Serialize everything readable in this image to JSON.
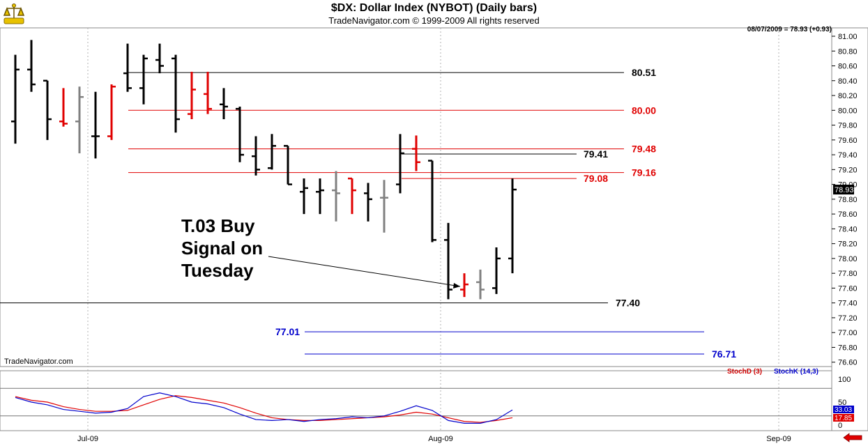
{
  "header": {
    "title": "$DX:  Dollar Index (NYBOT)  (Daily bars)",
    "subtitle": "TradeNavigator.com © 1999-2009 All rights reserved",
    "last_price": "08/07/2009 = 78.93 (+0.93)"
  },
  "watermark": "TradeNavigator.com",
  "annotation": {
    "lines": [
      "T.03 Buy",
      "Signal on",
      "Tuesday"
    ]
  },
  "colors": {
    "up_bar": "#000000",
    "down_bar": "#e00000",
    "inside_bar": "#808080",
    "red_level": "#e00000",
    "blue_level": "#0000cc",
    "stoch_d": "#e00000",
    "stoch_k": "#0000cc"
  },
  "chart_data": {
    "type": "ohlc",
    "ylim": [
      76.5,
      81.1
    ],
    "y_ticks": [
      "81.00",
      "80.80",
      "80.60",
      "80.40",
      "80.20",
      "80.00",
      "79.80",
      "79.60",
      "79.40",
      "79.20",
      "79.00",
      "78.80",
      "78.60",
      "78.40",
      "78.20",
      "78.00",
      "77.80",
      "77.60",
      "77.40",
      "77.20",
      "77.00",
      "76.80",
      "76.60"
    ],
    "x_labels": [
      "Jul-09",
      "Aug-09",
      "Sep-09"
    ],
    "bars": [
      {
        "o": 79.85,
        "h": 80.75,
        "l": 79.55,
        "c": 80.55,
        "color": "black"
      },
      {
        "o": 80.55,
        "h": 80.95,
        "l": 80.25,
        "c": 80.35,
        "color": "black"
      },
      {
        "o": 80.4,
        "h": 80.4,
        "l": 79.6,
        "c": 79.88,
        "color": "black"
      },
      {
        "o": 79.85,
        "h": 80.3,
        "l": 79.78,
        "c": 79.82,
        "color": "red"
      },
      {
        "o": 79.85,
        "h": 80.32,
        "l": 79.42,
        "c": 80.18,
        "color": "gray"
      },
      {
        "o": 79.65,
        "h": 80.25,
        "l": 79.35,
        "c": 79.65,
        "color": "black"
      },
      {
        "o": 79.65,
        "h": 80.35,
        "l": 79.6,
        "c": 80.32,
        "color": "red"
      },
      {
        "o": 80.5,
        "h": 80.9,
        "l": 80.25,
        "c": 80.3,
        "color": "black"
      },
      {
        "o": 80.3,
        "h": 80.75,
        "l": 80.08,
        "c": 80.7,
        "color": "black"
      },
      {
        "o": 80.68,
        "h": 80.9,
        "l": 80.5,
        "c": 80.6,
        "color": "black"
      },
      {
        "o": 80.7,
        "h": 80.75,
        "l": 79.7,
        "c": 79.88,
        "color": "black"
      },
      {
        "o": 79.95,
        "h": 80.52,
        "l": 79.88,
        "c": 80.28,
        "color": "red"
      },
      {
        "o": 80.22,
        "h": 80.52,
        "l": 79.95,
        "c": 80.02,
        "color": "red"
      },
      {
        "o": 80.08,
        "h": 80.3,
        "l": 79.88,
        "c": 80.05,
        "color": "black"
      },
      {
        "o": 80.02,
        "h": 80.05,
        "l": 79.3,
        "c": 79.4,
        "color": "black"
      },
      {
        "o": 79.38,
        "h": 79.65,
        "l": 79.12,
        "c": 79.2,
        "color": "black"
      },
      {
        "o": 79.22,
        "h": 79.68,
        "l": 79.2,
        "c": 79.52,
        "color": "black"
      },
      {
        "o": 79.52,
        "h": 79.52,
        "l": 79.0,
        "c": 79.0,
        "color": "black"
      },
      {
        "o": 78.9,
        "h": 79.08,
        "l": 78.6,
        "c": 78.95,
        "color": "black"
      },
      {
        "o": 78.9,
        "h": 79.08,
        "l": 78.6,
        "c": 78.92,
        "color": "black"
      },
      {
        "o": 78.92,
        "h": 79.18,
        "l": 78.5,
        "c": 78.88,
        "color": "gray"
      },
      {
        "o": 79.08,
        "h": 79.08,
        "l": 78.6,
        "c": 78.92,
        "color": "red"
      },
      {
        "o": 78.88,
        "h": 79.02,
        "l": 78.5,
        "c": 78.8,
        "color": "black"
      },
      {
        "o": 78.82,
        "h": 79.06,
        "l": 78.35,
        "c": 78.82,
        "color": "gray"
      },
      {
        "o": 79.0,
        "h": 79.68,
        "l": 78.88,
        "c": 79.42,
        "color": "black"
      },
      {
        "o": 79.48,
        "h": 79.66,
        "l": 79.18,
        "c": 79.3,
        "color": "red"
      },
      {
        "o": 79.32,
        "h": 79.32,
        "l": 78.22,
        "c": 78.25,
        "color": "black"
      },
      {
        "o": 78.25,
        "h": 78.48,
        "l": 77.45,
        "c": 77.58,
        "color": "black"
      },
      {
        "o": 77.58,
        "h": 77.8,
        "l": 77.48,
        "c": 77.65,
        "color": "red"
      },
      {
        "o": 77.68,
        "h": 77.85,
        "l": 77.45,
        "c": 77.58,
        "color": "gray"
      },
      {
        "o": 77.6,
        "h": 78.15,
        "l": 77.52,
        "c": 78.0,
        "color": "black"
      },
      {
        "o": 78.0,
        "h": 79.08,
        "l": 77.8,
        "c": 78.93,
        "color": "black"
      }
    ],
    "levels": [
      {
        "value": 80.51,
        "label": "80.51",
        "color": "black"
      },
      {
        "value": 80.0,
        "label": "80.00",
        "color": "red"
      },
      {
        "value": 79.48,
        "label": "79.48",
        "color": "red"
      },
      {
        "value": 79.41,
        "label": "79.41",
        "color": "black"
      },
      {
        "value": 79.16,
        "label": "79.16",
        "color": "red"
      },
      {
        "value": 79.08,
        "label": "79.08",
        "color": "red"
      },
      {
        "value": 77.4,
        "label": "77.40",
        "color": "black"
      },
      {
        "value": 77.01,
        "label": "77.01",
        "color": "blue"
      },
      {
        "value": 76.71,
        "label": "76.71",
        "color": "blue"
      }
    ],
    "current_price_label": "78.93",
    "stochastic": {
      "ylim": [
        0,
        110
      ],
      "y_ticks": [
        "100",
        "50",
        "0"
      ],
      "series": [
        {
          "name": "StochD (3)",
          "color": "red",
          "values": [
            62,
            54,
            50,
            40,
            34,
            30,
            30,
            32,
            44,
            56,
            64,
            60,
            54,
            48,
            38,
            26,
            16,
            12,
            10,
            10,
            12,
            14,
            16,
            18,
            22,
            28,
            24,
            16,
            8,
            6,
            10,
            16
          ]
        },
        {
          "name": "StochK (14,3)",
          "color": "blue",
          "values": [
            60,
            50,
            44,
            34,
            30,
            26,
            28,
            36,
            62,
            70,
            62,
            50,
            46,
            38,
            24,
            12,
            10,
            12,
            8,
            12,
            14,
            18,
            16,
            20,
            30,
            42,
            32,
            10,
            4,
            4,
            12,
            33
          ]
        }
      ],
      "last_values": [
        "33.03",
        "17.85"
      ]
    }
  }
}
